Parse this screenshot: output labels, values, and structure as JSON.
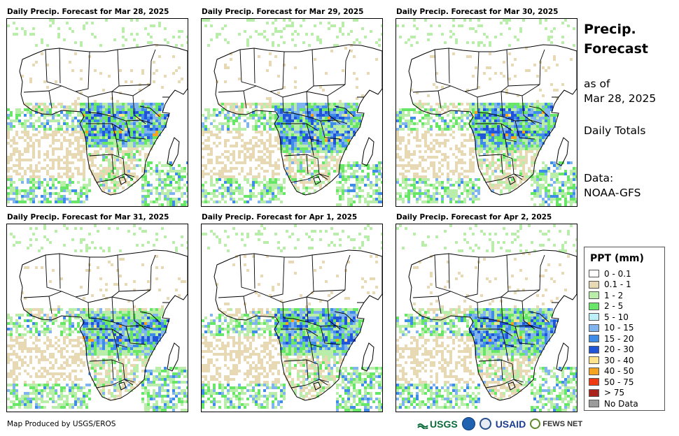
{
  "panels": [
    {
      "title": "Daily Precip. Forecast for Mar 28, 2025",
      "seed": 11
    },
    {
      "title": "Daily Precip. Forecast for Mar 29, 2025",
      "seed": 23
    },
    {
      "title": "Daily Precip. Forecast for Mar 30, 2025",
      "seed": 37
    },
    {
      "title": "Daily Precip. Forecast for Mar 31, 2025",
      "seed": 41
    },
    {
      "title": "Daily Precip. Forecast for Apr 1, 2025",
      "seed": 53
    },
    {
      "title": "Daily Precip. Forecast for Apr 2, 2025",
      "seed": 67
    }
  ],
  "side": {
    "title": "Precip. Forecast",
    "as_of_label": "as of",
    "as_of_date": "Mar 28, 2025",
    "totals": "Daily Totals",
    "data_label": "Data:",
    "data_source": "NOAA-GFS"
  },
  "legend": {
    "title": "PPT (mm)",
    "items": [
      {
        "label": "0 - 0.1",
        "color": "#ffffff"
      },
      {
        "label": "0.1 - 1",
        "color": "#e8d9b5"
      },
      {
        "label": "1 - 2",
        "color": "#b9eeaa"
      },
      {
        "label": "2 - 5",
        "color": "#67e667"
      },
      {
        "label": "5 - 10",
        "color": "#bdeff8"
      },
      {
        "label": "10 - 15",
        "color": "#7fb4ee"
      },
      {
        "label": "15 - 20",
        "color": "#3f8ce8"
      },
      {
        "label": "20 - 30",
        "color": "#1f55d6"
      },
      {
        "label": "30 - 40",
        "color": "#fce38c"
      },
      {
        "label": "40 - 50",
        "color": "#f5a422"
      },
      {
        "label": "50 - 75",
        "color": "#ef3a12"
      },
      {
        "label": "> 75",
        "color": "#a9231b"
      },
      {
        "label": "No Data",
        "color": "#9b9b9b"
      }
    ]
  },
  "footer": {
    "credit": "Map Produced by USGS/EROS",
    "logo_usgs": "USGS",
    "logo_usaid": "USAID",
    "logo_fews": "FEWS NET"
  }
}
